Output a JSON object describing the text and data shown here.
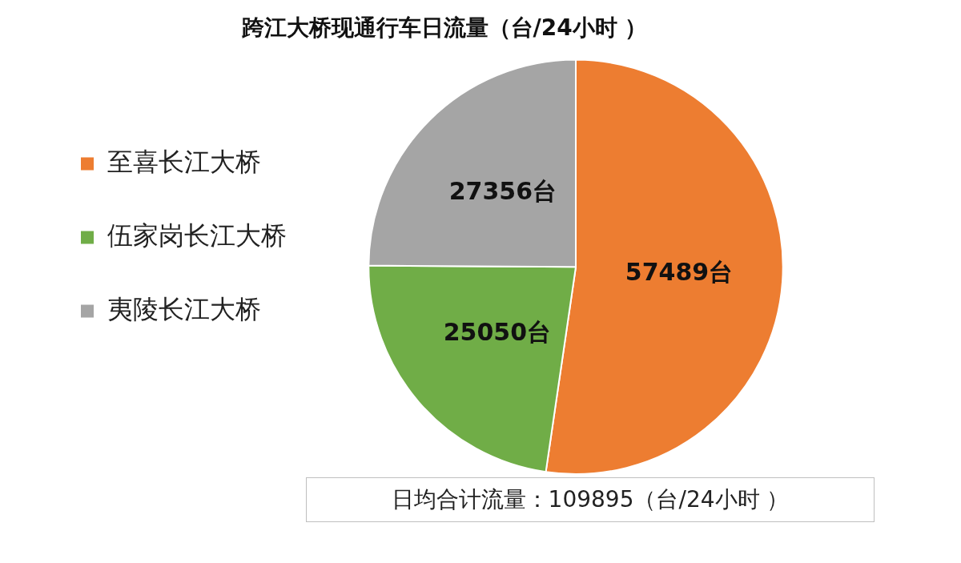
{
  "chart_data": {
    "type": "pie",
    "title": "跨江大桥现通行车日流量（台/24小时 ）",
    "categories": [
      "至喜长江大桥",
      "伍家岗长江大桥",
      "夷陵长江大桥"
    ],
    "values": [
      57489,
      25050,
      27356
    ],
    "colors": [
      "#ed7d31",
      "#70ad47",
      "#a5a5a5"
    ],
    "value_labels": [
      "57489台",
      "25050台",
      "27356台"
    ],
    "legend": "left",
    "annotations": [
      "日均合计流量：109895（台/24小时 ）"
    ]
  }
}
